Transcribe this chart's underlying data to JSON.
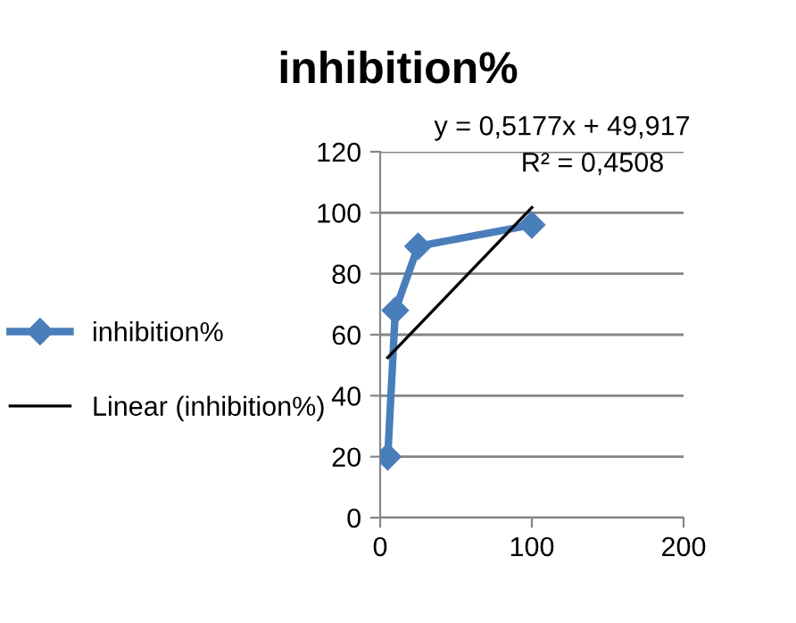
{
  "chart_data": {
    "type": "line",
    "title": "inhibition%",
    "series": [
      {
        "name": "inhibition%",
        "color": "#4a7ebb",
        "x": [
          5,
          10,
          25,
          100
        ],
        "values": [
          20,
          68,
          89,
          96
        ],
        "marker": "diamond"
      },
      {
        "name": "Linear (inhibition%)",
        "color": "#000000",
        "type": "line",
        "x": [
          5,
          100
        ],
        "values": [
          52.5,
          101.7
        ],
        "marker": "none"
      }
    ],
    "annotations": [
      "y = 0,5177x + 49,917",
      "R² = 0,4508"
    ],
    "xlim": [
      0,
      200
    ],
    "xticks": [
      0,
      100,
      200
    ],
    "ylim": [
      0,
      120
    ],
    "yticks": [
      0,
      20,
      40,
      60,
      80,
      100,
      120
    ],
    "grid": "y",
    "legend": "left"
  }
}
